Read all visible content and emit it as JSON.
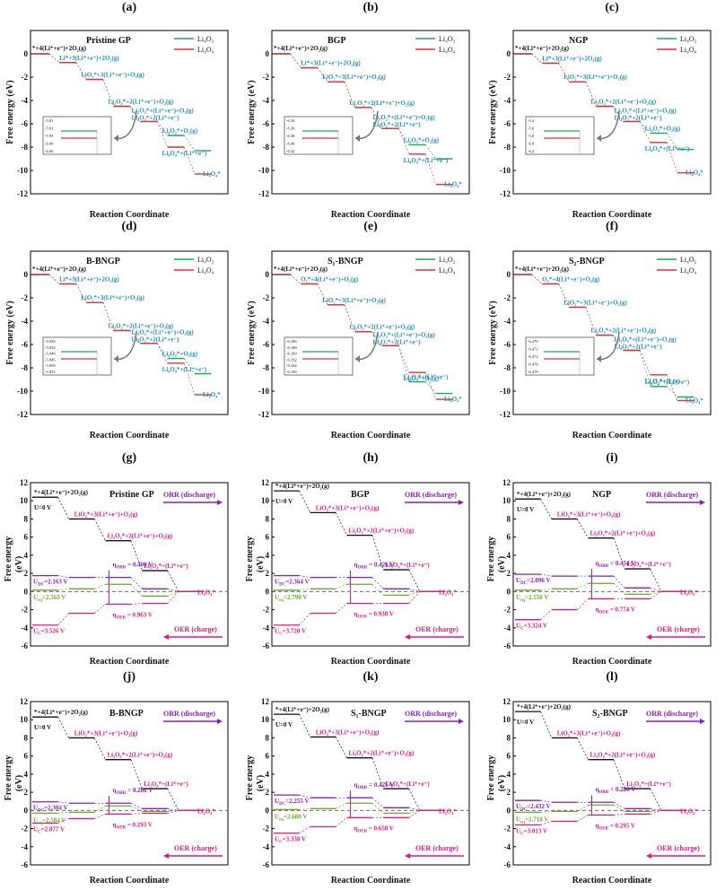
{
  "figure": {
    "colors": {
      "li2o2": "#1fa55a",
      "li4o4": "#e0303a",
      "path": "#111111",
      "teal": "#1f8fb5",
      "purple": "#8a1fb5",
      "magenta": "#e0187a",
      "green": "#6aa82a",
      "u0": "#111111"
    },
    "xlabel": "Reaction Coordinate",
    "ylabel_top": "Free energy (eV)",
    "ylabel_bottom": "Free energy\n(eV)",
    "legend": [
      "Li₄O₂",
      "Li₄O₄"
    ]
  },
  "chart_data": [
    {
      "panel": "(a)",
      "type": "line",
      "title": "Pristine GP",
      "xlabel": "Reaction Coordinate",
      "ylabel": "Free energy (eV)",
      "ylim": [
        -12,
        2
      ],
      "yticks": [
        0,
        -2,
        -4,
        -6,
        -8,
        -10,
        -12
      ],
      "series": [
        {
          "name": "Li₄O₂",
          "values": [
            0,
            -0.75,
            -2.2,
            -4.5,
            -5.8,
            -7.0,
            -8.3
          ]
        },
        {
          "name": "Li₄O₄",
          "values": [
            0,
            -0.75,
            -2.2,
            -4.5,
            -5.8,
            -8.0,
            -10.3
          ]
        }
      ],
      "annotations": [
        "*+4(Li⁺+e⁻)+2O₂(g)",
        "Li*+3(Li⁺+e⁻)+2O₂(g)",
        "LiO₂*+3(Li⁺+e⁻)+O₂(g)",
        "Li₂O₂*+2(Li⁺+e⁻)+O₂(g)",
        "Li₃O₂*+(Li⁺+e⁻)+O₂(g)",
        "Li₄O₂*+2(Li⁺+e⁻)",
        "Li₄O₂*+O₂(g)",
        "Li₄O₄*+(Li⁺+e⁻)",
        "Li₄O₄*"
      ],
      "inset_ticks": [
        "-5.81",
        "-5.91",
        "-5.95",
        "-6.00",
        "-6.06"
      ]
    },
    {
      "panel": "(b)",
      "type": "line",
      "title": "BGP",
      "xlabel": "Reaction Coordinate",
      "ylabel": "Free energy (eV)",
      "ylim": [
        -12,
        2
      ],
      "yticks": [
        0,
        -2,
        -4,
        -6,
        -8,
        -10,
        -12
      ],
      "series": [
        {
          "name": "Li₄O₂",
          "values": [
            0,
            -1.2,
            -2.4,
            -4.6,
            -6.4,
            -7.8,
            -9.0
          ]
        },
        {
          "name": "Li₄O₄",
          "values": [
            0,
            -1.2,
            -2.4,
            -4.6,
            -6.4,
            -8.6,
            -11.2
          ]
        }
      ],
      "annotations": [
        "*+4(Li⁺+e⁻)+2O₂(g)",
        "Li*+3(Li⁺+e⁻)+2O₂(g)",
        "LiO₂*+3(Li⁺+e⁻)+O₂(g)",
        "Li₂O₂*+2(Li⁺+e⁻)+O₂(g)",
        "Li₃O₂*+(Li⁺+e⁻)+O₂(g)",
        "Li₄O₂*+2(Li⁺+e⁻)",
        "Li₄O₂*+O₂(g)",
        "Li₄O₄*+(Li⁺+e⁻)",
        "Li₄O₄*"
      ],
      "inset_ticks": [
        "-6.34",
        "-6.36",
        "-6.38",
        "-6.40",
        "-6.42"
      ]
    },
    {
      "panel": "(c)",
      "type": "line",
      "title": "NGP",
      "xlabel": "Reaction Coordinate",
      "ylabel": "Free energy (eV)",
      "ylim": [
        -12,
        2
      ],
      "yticks": [
        0,
        -2,
        -4,
        -6,
        -8,
        -10,
        -12
      ],
      "series": [
        {
          "name": "Li₄O₂",
          "values": [
            0,
            -0.8,
            -2.4,
            -4.5,
            -5.8,
            -6.8,
            -8.2
          ]
        },
        {
          "name": "Li₄O₄",
          "values": [
            0,
            -0.8,
            -2.4,
            -4.5,
            -5.8,
            -7.6,
            -10.2
          ]
        }
      ],
      "annotations": [
        "*+4(Li⁺+e⁻)+2O₂(g)",
        "Li*+3(Li⁺+e⁻)+2O₂(g)",
        "LiO₂*+3(Li⁺+e⁻)+O₂(g)",
        "Li₂O₂*+2(Li⁺+e⁻)+O₂(g)",
        "Li₃O₂*+(Li⁺+e⁻)+O₂(g)",
        "Li₄O₂*+2(Li⁺+e⁻)",
        "Li₄O₂*+O₂(g)",
        "Li₄O₄*+(Li⁺+e⁻)",
        "Li₄O₄*"
      ],
      "inset_ticks": [
        "-5.4",
        "-5.6",
        "-5.8",
        "-6.0",
        "-6.2"
      ]
    },
    {
      "panel": "(d)",
      "type": "line",
      "title": "B-BNGP",
      "xlabel": "Reaction Coordinate",
      "ylabel": "Free energy (eV)",
      "ylim": [
        -12,
        2
      ],
      "yticks": [
        0,
        -2,
        -4,
        -6,
        -8,
        -10,
        -12
      ],
      "series": [
        {
          "name": "Li₄O₂",
          "values": [
            0,
            -0.8,
            -2.4,
            -4.8,
            -5.9,
            -7.2,
            -8.5
          ]
        },
        {
          "name": "Li₄O₄",
          "values": [
            0,
            -0.8,
            -2.4,
            -4.8,
            -5.9,
            -7.6,
            -10.3
          ]
        }
      ],
      "annotations": [
        "*+4(Li⁺+e⁻)+2O₂(g)",
        "Li*+3(Li⁺+e⁻)+2O₂(g)",
        "LiO₂*+3(Li⁺+e⁻)+O₂(g)",
        "Li₂O₂*+2(Li⁺+e⁻)+O₂(g)",
        "Li₃O₂*+(Li⁺+e⁻)+O₂(g)",
        "Li₄O₂*+2(Li⁺+e⁻)",
        "Li₄O₂*+O₂(g)",
        "Li₄O₄*+(Li⁺+e⁻)",
        "Li₄O₄*"
      ],
      "inset_ticks": [
        "-5.930",
        "-5.935",
        "-5.940",
        "-5.945",
        "-5.950",
        "-5.955"
      ]
    },
    {
      "panel": "(e)",
      "type": "line",
      "title": "S₁-BNGP",
      "xlabel": "Reaction Coordinate",
      "ylabel": "Free energy (eV)",
      "ylim": [
        -12,
        2
      ],
      "yticks": [
        0,
        -2,
        -4,
        -6,
        -8,
        -10,
        -12
      ],
      "series": [
        {
          "name": "Li₄O₂",
          "values": [
            0,
            -0.8,
            -2.6,
            -4.9,
            -6.1,
            -9.2,
            -10.2
          ]
        },
        {
          "name": "Li₄O₄",
          "values": [
            0,
            -0.8,
            -2.6,
            -4.9,
            -6.1,
            -8.4,
            -10.7
          ]
        }
      ],
      "annotations": [
        "*+4(Li⁺+e⁻)+2O₂(g)",
        "O₂*+4(Li⁺+e⁻)+O₂(g)",
        "LiO₂*+3(Li⁺+e⁻)+O₂(g)",
        "Li₂O₂*+2(Li⁺+e⁻)+O₂(g)",
        "Li₃O₂*+(Li⁺+e⁻)+O₂(g)",
        "Li₄O₂*+2(Li⁺+e⁻)",
        "Li₄O₄*+(Li⁺+e⁻)",
        "Li₄O₂*+O₂(g)",
        "Li₄O₄*"
      ],
      "inset_ticks": [
        "-6.186",
        "-6.188",
        "-6.190",
        "-6.192",
        "-6.194",
        "-6.196"
      ]
    },
    {
      "panel": "(f)",
      "type": "line",
      "title": "S₂-BNGP",
      "xlabel": "Reaction Coordinate",
      "ylabel": "Free energy (eV)",
      "ylim": [
        -12,
        2
      ],
      "yticks": [
        0,
        -2,
        -4,
        -6,
        -8,
        -10,
        -12
      ],
      "series": [
        {
          "name": "Li₄O₂",
          "values": [
            0,
            -0.8,
            -2.8,
            -5.2,
            -6.5,
            -9.6,
            -10.5
          ]
        },
        {
          "name": "Li₄O₄",
          "values": [
            0,
            -0.8,
            -2.8,
            -5.2,
            -6.5,
            -8.6,
            -10.8
          ]
        }
      ],
      "annotations": [
        "*+4(Li⁺+e⁻)+2O₂(g)",
        "O₂*+4(Li⁺+e⁻)+O₂(g)",
        "LiO₂*+3(Li⁺+e⁻)+O₂(g)",
        "Li₂O₂*+2(Li⁺+e⁻)+O₂(g)",
        "Li₃O₂*+(Li⁺+e⁻)+O₂(g)",
        "Li₄O₂*+2(Li⁺+e⁻)",
        "Li₄O₄*+(Li⁺+e⁻)",
        "Li₄O₂*+O₂(g)",
        "Li₄O₄*"
      ],
      "inset_ticks": [
        "-6.470",
        "-6.472",
        "-6.474",
        "-6.476",
        "-6.478"
      ]
    },
    {
      "panel": "(g)",
      "type": "line",
      "title": "Pristine GP",
      "xlabel": "Reaction Coordinate",
      "ylabel": "Free energy (eV)",
      "ylim": [
        -6,
        12
      ],
      "yticks": [
        12,
        10,
        8,
        6,
        4,
        2,
        0,
        -2,
        -4,
        -6
      ],
      "series": [
        {
          "name": "U=0 V",
          "values": [
            10.4,
            8.0,
            5.6,
            2.3,
            0.0
          ]
        },
        {
          "name": "U_DC",
          "values": [
            1.75,
            1.55,
            1.55,
            0.3,
            0.0
          ]
        },
        {
          "name": "U_eq",
          "values": [
            0.15,
            0.3,
            0.8,
            -0.5,
            0.0
          ]
        },
        {
          "name": "U_C",
          "values": [
            -3.7,
            -2.4,
            -1.4,
            -1.3,
            0.0
          ]
        }
      ],
      "labels": {
        "u0": "U=0 V",
        "udc": "2.163 V",
        "ueq": "2.563 V",
        "uc": "3.526 V",
        "orr_eta": "0.400 V",
        "oer_eta": "0.963 V"
      },
      "annotations": [
        "*+4(Li⁺+e⁻)+2O₂(g)",
        "LiO₂*+3(Li⁺+e⁻)+O₂(g)",
        "Li₂O₂*+2(Li⁺+e⁻)+O₂(g)",
        "Li₃O₄*+(Li⁺+e⁻)",
        "Li₄O₄*"
      ]
    },
    {
      "panel": "(h)",
      "type": "line",
      "title": "BGP",
      "xlabel": "Reaction Coordinate",
      "ylabel": "Free energy (eV)",
      "ylim": [
        -6,
        12
      ],
      "yticks": [
        12,
        10,
        8,
        6,
        4,
        2,
        0,
        -2,
        -4,
        -6
      ],
      "series": [
        {
          "name": "U=0 V",
          "values": [
            11.1,
            8.7,
            6.2,
            2.4,
            0.0
          ]
        },
        {
          "name": "U_DC",
          "values": [
            1.75,
            1.55,
            1.55,
            0.3,
            0.0
          ]
        },
        {
          "name": "U_eq",
          "values": [
            0.15,
            0.3,
            0.8,
            -0.4,
            0.0
          ]
        },
        {
          "name": "U_C",
          "values": [
            -3.7,
            -2.4,
            -1.3,
            -1.3,
            0.0
          ]
        }
      ],
      "labels": {
        "u0": "U=0 V",
        "udc": "2.364 V",
        "ueq": "2.790 V",
        "uc": "3.720 V",
        "orr_eta": "0.426 V",
        "oer_eta": "0.930 V"
      },
      "annotations": [
        "*+4(Li⁺+e⁻)+2O₂(g)",
        "LiO₂*+3(Li⁺+e⁻)+O₂(g)",
        "Li₂O₂*+2(Li⁺+e⁻)+O₂(g)",
        "Li₃O₄*+(Li⁺+e⁻)",
        "Li₄O₄*"
      ]
    },
    {
      "panel": "(i)",
      "type": "line",
      "title": "NGP",
      "xlabel": "Reaction Coordinate",
      "ylabel": "Free energy (eV)",
      "ylim": [
        -6,
        12
      ],
      "yticks": [
        12,
        10,
        8,
        6,
        4,
        2,
        0,
        -2,
        -4,
        -6
      ],
      "series": [
        {
          "name": "U=0 V",
          "values": [
            10.2,
            8.0,
            5.9,
            2.5,
            0.0
          ]
        },
        {
          "name": "U_DC",
          "values": [
            1.9,
            1.7,
            1.7,
            0.4,
            0.0
          ]
        },
        {
          "name": "U_eq",
          "values": [
            0.15,
            0.3,
            0.9,
            -0.3,
            0.0
          ]
        },
        {
          "name": "U_C",
          "values": [
            -3.1,
            -2.0,
            -0.8,
            -0.8,
            0.0
          ]
        }
      ],
      "labels": {
        "u0": "U=0 V",
        "udc": "2.096 V",
        "ueq": "2.550 V",
        "uc": "3.324 V",
        "orr_eta": "0.454 V",
        "oer_eta": "0.774 V"
      },
      "annotations": [
        "*+4(Li⁺+e⁻)+2O₂(g)",
        "LiO₂*+3(Li⁺+e⁻)+O₂(g)",
        "Li₂O₂*+2(Li⁺+e⁻)+O₂(g)",
        "Li₃O₄*+(Li⁺+e⁻)",
        "Li₄O₄*"
      ]
    },
    {
      "panel": "(j)",
      "type": "line",
      "title": "B-BNGP",
      "xlabel": "Reaction Coordinate",
      "ylabel": "Free energy (eV)",
      "ylim": [
        -6,
        12
      ],
      "yticks": [
        12,
        10,
        8,
        6,
        4,
        2,
        0,
        -2,
        -4,
        -6
      ],
      "series": [
        {
          "name": "U=0 V",
          "values": [
            10.3,
            8.0,
            5.6,
            2.4,
            0.0
          ]
        },
        {
          "name": "U_DC",
          "values": [
            0.95,
            0.8,
            0.8,
            0.2,
            0.0
          ]
        },
        {
          "name": "U_eq",
          "values": [
            -0.3,
            -0.2,
            0.5,
            -0.1,
            0.0
          ]
        },
        {
          "name": "U_C",
          "values": [
            -1.4,
            -0.9,
            -0.4,
            -0.3,
            0.0
          ]
        }
      ],
      "labels": {
        "u0": "U=0 V",
        "udc": "2.304 V",
        "ueq": "2.584 V",
        "uc": "2.877 V",
        "orr_eta": "0.280 V",
        "oer_eta": "0.293 V"
      },
      "annotations": [
        "*+4(Li⁺+e⁻)+2O₂(g)",
        "LiO₂*+3(Li⁺+e⁻)+O₂(g)",
        "Li₂O₂*+2(Li⁺+e⁻)+O₂(g)",
        "Li₃O₄*+(Li⁺+e⁻)",
        "Li₄O₄*"
      ]
    },
    {
      "panel": "(k)",
      "type": "line",
      "title": "S₁-BNGP",
      "xlabel": "Reaction Coordinate",
      "ylabel": "Free energy (eV)",
      "ylim": [
        -6,
        12
      ],
      "yticks": [
        12,
        10,
        8,
        6,
        4,
        2,
        0,
        -2,
        -4,
        -6
      ],
      "series": [
        {
          "name": "U=0 V",
          "values": [
            10.6,
            8.1,
            5.8,
            2.4,
            0.0
          ]
        },
        {
          "name": "U_DC",
          "values": [
            1.7,
            1.4,
            1.4,
            0.3,
            0.0
          ]
        },
        {
          "name": "U_eq",
          "values": [
            0.1,
            0.2,
            0.8,
            -0.3,
            0.0
          ]
        },
        {
          "name": "U_C",
          "values": [
            -2.5,
            -1.8,
            -0.8,
            -0.8,
            0.0
          ]
        }
      ],
      "labels": {
        "u0": "U=0 V",
        "udc": "2.255 V",
        "ueq": "2.680 V",
        "uc": "3.338 V",
        "orr_eta": "0.425 V",
        "oer_eta": "0.658 V"
      },
      "annotations": [
        "*+4(Li⁺+e⁻)+2O₂(g)",
        "LiO₂*+3(Li⁺+e⁻)+O₂(g)",
        "Li₂O₂*+2(Li⁺+e⁻)+O₂(g)",
        "Li₃O₄*+(Li⁺+e⁻)",
        "Li₄O₄*"
      ]
    },
    {
      "panel": "(l)",
      "type": "line",
      "title": "S₂-BNGP",
      "xlabel": "Reaction Coordinate",
      "ylabel": "Free energy (eV)",
      "ylim": [
        -6,
        12
      ],
      "yticks": [
        12,
        10,
        8,
        6,
        4,
        2,
        0,
        -2,
        -4,
        -6
      ],
      "series": [
        {
          "name": "U=0 V",
          "values": [
            10.9,
            8.0,
            5.6,
            2.4,
            0.0
          ]
        },
        {
          "name": "U_DC",
          "values": [
            1.1,
            0.9,
            0.9,
            0.2,
            0.0
          ]
        },
        {
          "name": "U_eq",
          "values": [
            -0.2,
            -0.1,
            0.6,
            -0.1,
            0.0
          ]
        },
        {
          "name": "U_C",
          "values": [
            -1.6,
            -1.2,
            -0.5,
            -0.4,
            0.0
          ]
        }
      ],
      "labels": {
        "u0": "U=0 V",
        "udc": "2.432 V",
        "ueq": "2.718 V",
        "uc": "3.013 V",
        "orr_eta": "0.286 V",
        "oer_eta": "0.295 V"
      },
      "annotations": [
        "*+4(Li⁺+e⁻)+2O₂(g)",
        "LiO₂*+3(Li⁺+e⁻)+O₂(g)",
        "Li₂O₂*+2(Li⁺+e⁻)+O₂(g)",
        "Li₃O₄*+(Li⁺+e⁻)",
        "Li₄O₄*"
      ]
    }
  ],
  "text_snippets": {
    "u0": "U=0 V",
    "udc_prefix": "U",
    "udc_sub": "DC",
    "ueq_prefix": "U",
    "ueq_sub": "eq",
    "uc_prefix": "U",
    "uc_sub": "C",
    "eta": "η",
    "orr_sub": "ORR",
    "oer_sub": "OER",
    "orr_label": "ORR (discharge)",
    "oer_label": "OER (charge)"
  }
}
